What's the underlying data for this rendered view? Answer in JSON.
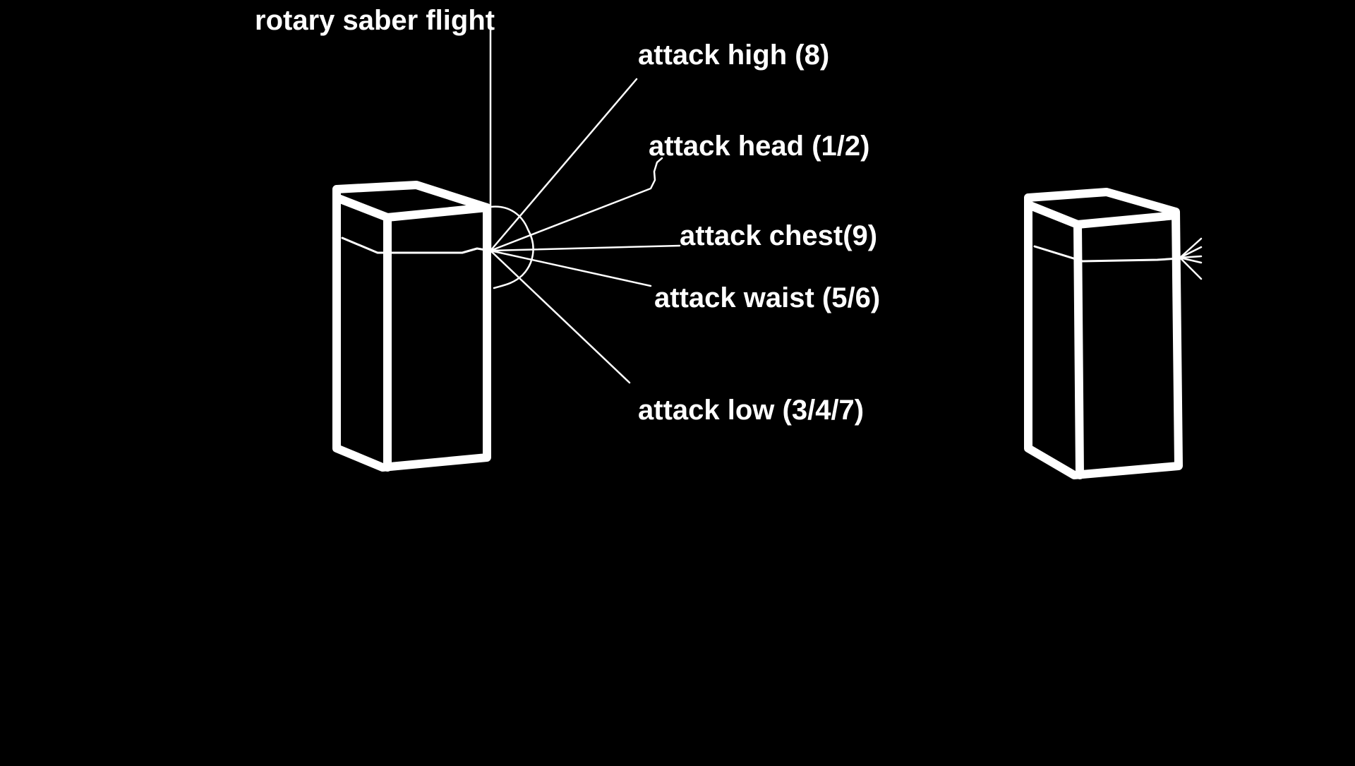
{
  "diagram": {
    "labels": {
      "rotary_saber_flight": "rotary saber flight",
      "attack_high": "attack high (8)",
      "attack_head": "attack head (1/2)",
      "attack_chest": "attack chest(9)",
      "attack_waist": "attack waist (5/6)",
      "attack_low": "attack low (3/4/7)"
    },
    "colors": {
      "background": "#000000",
      "stroke": "#ffffff"
    }
  }
}
